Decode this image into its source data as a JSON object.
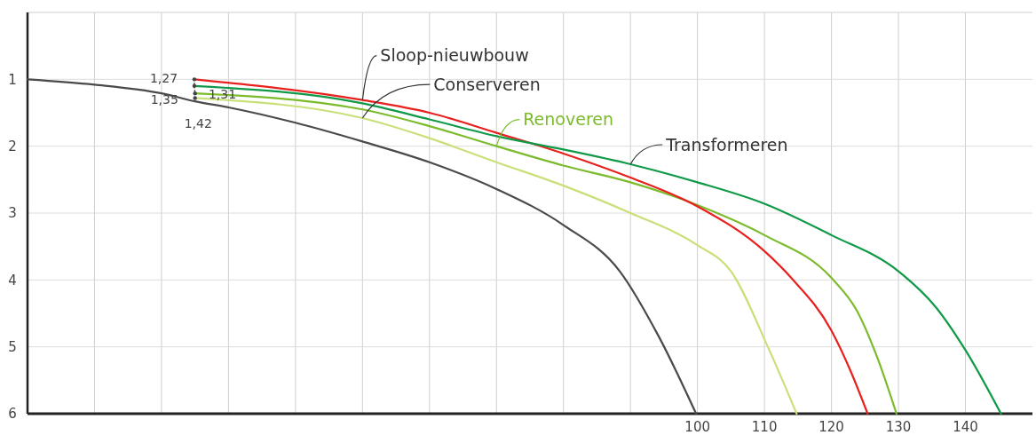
{
  "chart_data": {
    "type": "line",
    "xlim": [
      0,
      150
    ],
    "ylim": [
      6,
      0
    ],
    "xticks": [
      {
        "value": 10,
        "label": null
      },
      {
        "value": 20,
        "label": null
      },
      {
        "value": 30,
        "label": null
      },
      {
        "value": 40,
        "label": null
      },
      {
        "value": 50,
        "label": null
      },
      {
        "value": 60,
        "label": null
      },
      {
        "value": 70,
        "label": null
      },
      {
        "value": 80,
        "label": null
      },
      {
        "value": 90,
        "label": null
      },
      100,
      110,
      120,
      130,
      140
    ],
    "yticks": [
      1,
      2,
      3,
      4,
      5,
      6
    ],
    "grid": true,
    "legend": false,
    "marker": "none",
    "line_style": "solid",
    "series": [
      {
        "color": "#4a4a4a",
        "x": [
          0,
          10,
          20,
          25,
          30,
          40,
          50,
          60,
          70,
          80,
          88.4,
          94.3,
          99.8
        ],
        "values": [
          1,
          1.08,
          1.21,
          1.33,
          1.42,
          1.65,
          1.93,
          2.24,
          2.64,
          3.18,
          3.87,
          4.86,
          6
        ]
      },
      {
        "name": "Conserveren",
        "color": "#c9e07a",
        "x": [
          25,
          50,
          60,
          70,
          80,
          90,
          100,
          105,
          110.5,
          114.8
        ],
        "values": [
          1.28,
          1.58,
          1.88,
          2.24,
          2.59,
          3,
          3.48,
          3.87,
          5,
          6
        ]
      },
      {
        "name": "Renoveren",
        "color": "#7cbb2c",
        "x": [
          25,
          50,
          60,
          70,
          80,
          90,
          100,
          110,
          120,
          123.8,
          126.8,
          129.7
        ],
        "values": [
          1.21,
          1.45,
          1.7,
          2,
          2.29,
          2.54,
          2.88,
          3.33,
          3.97,
          4.46,
          5.15,
          6
        ]
      },
      {
        "name": "Sloop-nieuwbouw",
        "color": "#e8201e",
        "x": [
          24.9,
          50,
          60,
          70,
          80,
          90,
          100,
          110,
          114,
          120,
          122.8,
          125.4
        ],
        "values": [
          1,
          1.31,
          1.5,
          1.8,
          2.11,
          2.47,
          2.9,
          3.57,
          3.97,
          4.76,
          5.35,
          6
        ]
      },
      {
        "name": "Transformeren",
        "color": "#109a48",
        "x": [
          24.9,
          50,
          60,
          70,
          80,
          90,
          100,
          110,
          120,
          130,
          135.6,
          140,
          145.3
        ],
        "values": [
          1.1,
          1.36,
          1.6,
          1.85,
          2.05,
          2.27,
          2.54,
          2.86,
          3.33,
          3.87,
          4.41,
          5.05,
          6
        ]
      }
    ],
    "annotations": [
      "1,27",
      "1,31",
      "1,35",
      "1,42"
    ]
  }
}
